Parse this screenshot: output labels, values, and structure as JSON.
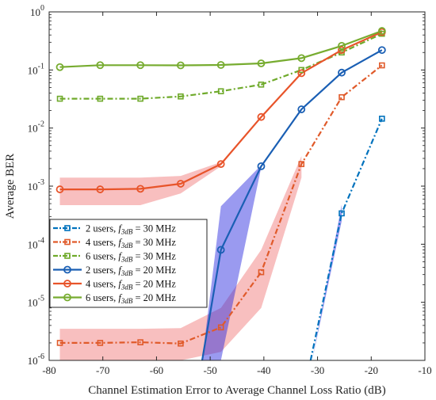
{
  "chart_data": {
    "type": "line",
    "xlabel": "Channel Estimation Error to Average Channel Loss Ratio (dB)",
    "ylabel": "Average BER",
    "xlim": [
      -80,
      -10
    ],
    "ylim": [
      1e-06,
      1
    ],
    "yscale": "log",
    "grid": false,
    "legend_position": "lower-left",
    "x_ticks": [
      -80,
      -70,
      -60,
      -50,
      -40,
      -30,
      -20,
      -10
    ],
    "y_ticks": [
      {
        "base": "10",
        "exp": "0",
        "value": 1
      },
      {
        "base": "10",
        "exp": "-1",
        "value": 0.1
      },
      {
        "base": "10",
        "exp": "-2",
        "value": 0.01
      },
      {
        "base": "10",
        "exp": "-3",
        "value": 0.001
      },
      {
        "base": "10",
        "exp": "-4",
        "value": 0.0001
      },
      {
        "base": "10",
        "exp": "-5",
        "value": 1e-05
      },
      {
        "base": "10",
        "exp": "-6",
        "value": 1e-06
      }
    ],
    "series": [
      {
        "name": "2 users, f3dB = 30 MHz",
        "legend": {
          "count": "2 users, ",
          "sym": "f",
          "sub": "3dB",
          "rest": " = 30 MHz"
        },
        "color": "#0072BD",
        "dash": "dashdot",
        "marker": "square",
        "x": [
          -25.5,
          -18
        ],
        "y": [
          0.00034,
          0.0145
        ],
        "line_x": [
          -31.3,
          -25.5,
          -18
        ],
        "line_y": [
          1e-06,
          0.00034,
          0.0145
        ],
        "band": {
          "x": [
            -32.5,
            -31,
            -25.5
          ],
          "lower": [
            1e-06,
            1e-06,
            0.00025
          ],
          "upper": [
            1e-06,
            1e-06,
            0.00048
          ],
          "color": "#2020dd"
        }
      },
      {
        "name": "4 users, f3dB = 30 MHz",
        "legend": {
          "count": "4 users, ",
          "sym": "f",
          "sub": "3dB",
          "rest": " = 30 MHz"
        },
        "color": "#E05A2A",
        "dash": "dashdot",
        "marker": "square",
        "x": [
          -78,
          -70.5,
          -63,
          -55.5,
          -48,
          -40.5,
          -33,
          -25.5,
          -18
        ],
        "y": [
          2e-06,
          2e-06,
          2.05e-06,
          1.95e-06,
          3.7e-06,
          3.3e-05,
          0.0024,
          0.034,
          0.12
        ],
        "band": {
          "x": [
            -78,
            -70.5,
            -63,
            -55.5,
            -48,
            -40.5,
            -33
          ],
          "lower": [
            1e-06,
            1e-06,
            1e-06,
            1e-06,
            1.4e-06,
            8e-06,
            0.0014
          ],
          "upper": [
            3.5e-06,
            3.5e-06,
            3.5e-06,
            3.6e-06,
            8e-06,
            8e-05,
            0.0033
          ],
          "color": "#f07070"
        }
      },
      {
        "name": "6 users, f3dB = 30 MHz",
        "legend": {
          "count": "6 users, ",
          "sym": "f",
          "sub": "3dB",
          "rest": " = 30 MHz"
        },
        "color": "#6FAA2B",
        "dash": "dashdot",
        "marker": "square",
        "x": [
          -78,
          -70.5,
          -63,
          -55.5,
          -48,
          -40.5,
          -33,
          -25.5,
          -18
        ],
        "y": [
          0.032,
          0.032,
          0.032,
          0.035,
          0.043,
          0.056,
          0.1,
          0.2,
          0.42
        ]
      },
      {
        "name": "2 users, f3dB = 20 MHz",
        "legend": {
          "count": "2 users, ",
          "sym": "f",
          "sub": "3dB",
          "rest": " = 20 MHz"
        },
        "color": "#1A5FB4",
        "dash": "solid",
        "marker": "circle",
        "x": [
          -48,
          -40.5,
          -33,
          -25.5,
          -18
        ],
        "y": [
          8e-05,
          0.0022,
          0.021,
          0.09,
          0.22
        ],
        "line_x": [
          -51.5,
          -48,
          -40.5,
          -33,
          -25.5,
          -18
        ],
        "line_y": [
          1e-06,
          8e-05,
          0.0022,
          0.021,
          0.09,
          0.22
        ],
        "band": {
          "x": [
            -51.5,
            -48,
            -40.5
          ],
          "lower": [
            1e-06,
            1e-06,
            0.0021
          ],
          "upper": [
            1e-06,
            0.00045,
            0.0023
          ],
          "color": "#2020dd"
        }
      },
      {
        "name": "4 users, f3dB = 20 MHz",
        "legend": {
          "count": "4 users, ",
          "sym": "f",
          "sub": "3dB",
          "rest": " = 20 MHz"
        },
        "color": "#E8542A",
        "dash": "solid",
        "marker": "circle",
        "x": [
          -78,
          -70.5,
          -63,
          -55.5,
          -48,
          -40.5,
          -33,
          -25.5,
          -18
        ],
        "y": [
          0.00088,
          0.00088,
          0.0009,
          0.0011,
          0.0024,
          0.0155,
          0.088,
          0.22,
          0.45
        ],
        "band": {
          "x": [
            -78,
            -70.5,
            -63,
            -55.5,
            -48
          ],
          "lower": [
            0.00047,
            0.00047,
            0.00047,
            0.00075,
            0.0022
          ],
          "upper": [
            0.0014,
            0.0014,
            0.0014,
            0.0015,
            0.0026
          ],
          "color": "#f07070"
        }
      },
      {
        "name": "6 users, f3dB = 20 MHz",
        "legend": {
          "count": "6 users, ",
          "sym": "f",
          "sub": "3dB",
          "rest": " = 20 MHz"
        },
        "color": "#77AC30",
        "dash": "solid",
        "marker": "circle",
        "x": [
          -78,
          -70.5,
          -63,
          -55.5,
          -48,
          -40.5,
          -33,
          -25.5,
          -18
        ],
        "y": [
          0.112,
          0.121,
          0.121,
          0.12,
          0.122,
          0.13,
          0.16,
          0.26,
          0.47
        ]
      }
    ]
  }
}
